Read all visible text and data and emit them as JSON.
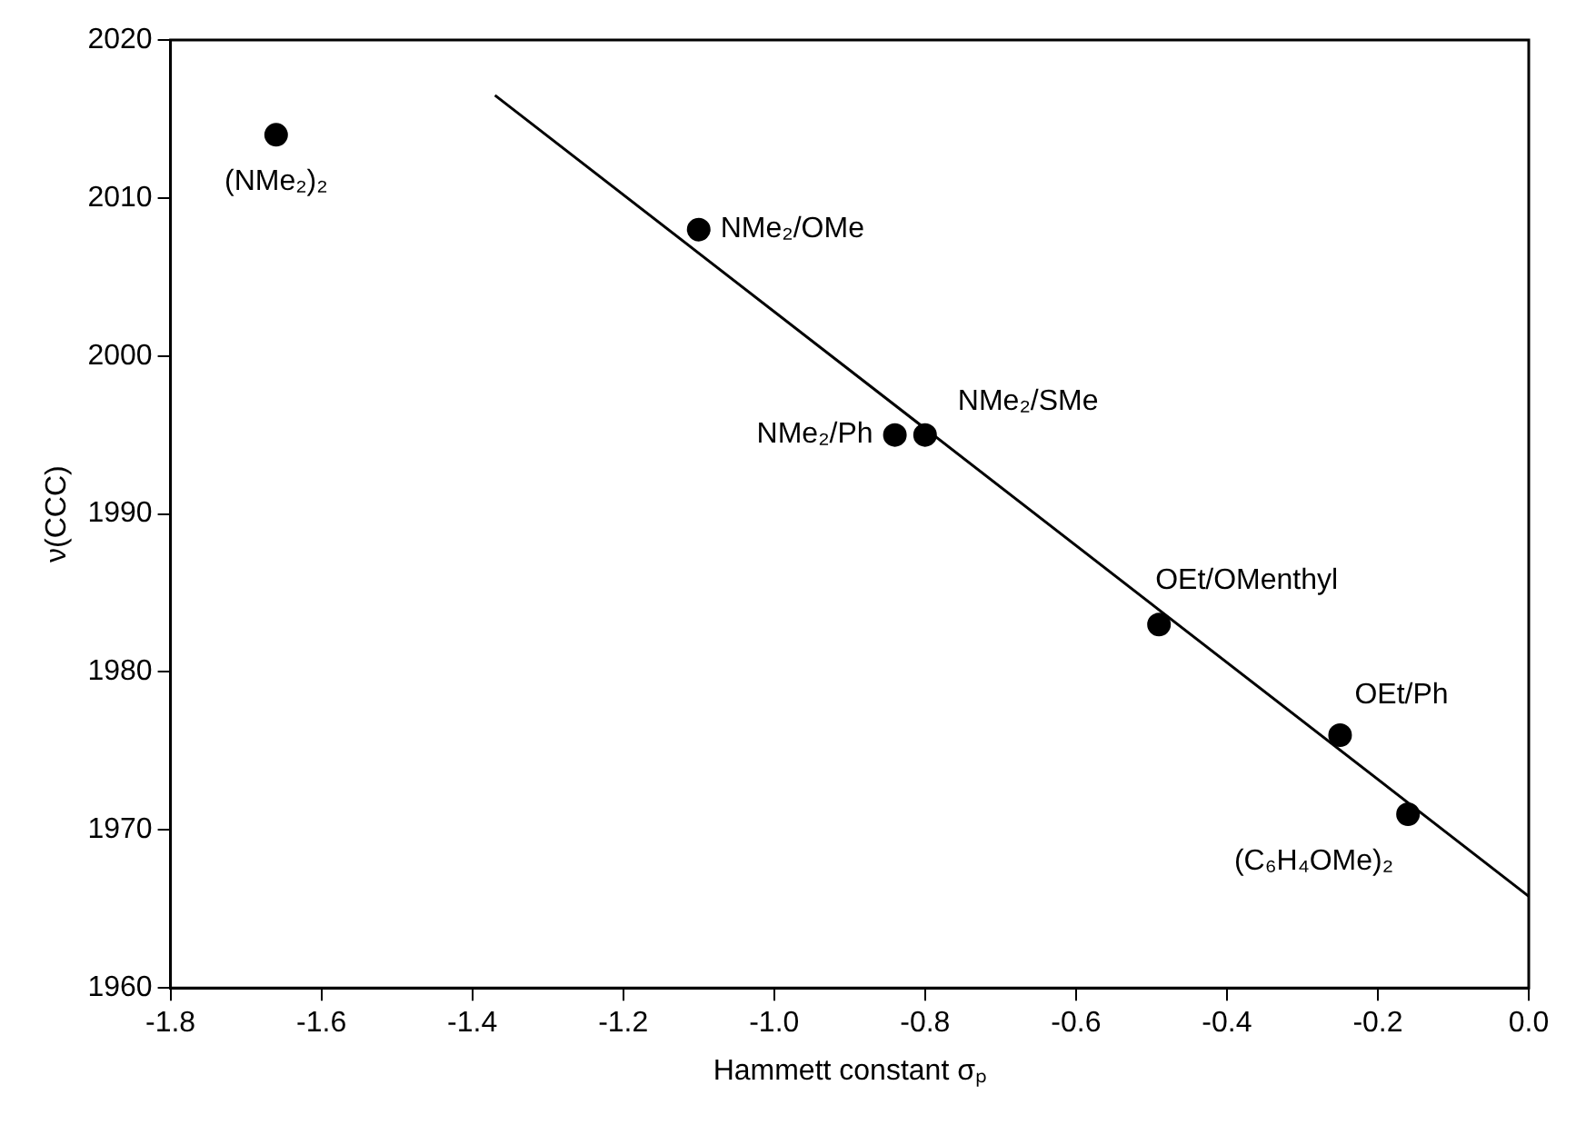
{
  "chart_data": {
    "type": "scatter",
    "xlabel": "Hammett constant σₚ",
    "ylabel": "ν(CCC)",
    "xlim": [
      -1.8,
      0.0
    ],
    "xticks": [
      {
        "value": -1.8,
        "label": "-1.8"
      },
      {
        "value": -1.6,
        "label": "-1.6"
      },
      {
        "value": -1.4,
        "label": "-1.4"
      },
      {
        "value": -1.2,
        "label": "-1.2"
      },
      {
        "value": -1.0,
        "label": "-1.0"
      },
      {
        "value": -0.8,
        "label": "-0.8"
      },
      {
        "value": -0.6,
        "label": "-0.6"
      },
      {
        "value": -0.4,
        "label": "-0.4"
      },
      {
        "value": -0.2,
        "label": "-0.2"
      },
      {
        "value": 0.0,
        "label": "0.0"
      }
    ],
    "ylim": [
      1960,
      2020
    ],
    "yticks": [
      1960,
      1970,
      1980,
      1990,
      2000,
      2010,
      2020
    ],
    "grid": false,
    "legend": false,
    "series": [
      {
        "color": "#000000",
        "marker": "circle",
        "x": [
          -1.66,
          -1.1,
          -0.84,
          -0.8,
          -0.49,
          -0.25,
          -0.16
        ],
        "values": [
          2014,
          2008,
          1995,
          1995,
          1983,
          1976,
          1971
        ]
      },
      {
        "type": "line",
        "color": "#000000",
        "line_style": "solid",
        "marker": "none",
        "x": [
          -1.37,
          0.0
        ],
        "values": [
          2016.5,
          1965.8
        ]
      }
    ],
    "annotations": [
      {
        "text": "(NMe₂)₂",
        "x": -1.66,
        "y": 2014
      },
      {
        "text": "NMe₂/OMe",
        "x": -1.1,
        "y": 2008
      },
      {
        "text": "NMe₂/Ph",
        "x": -0.84,
        "y": 1995
      },
      {
        "text": "NMe₂/SMe",
        "x": -0.8,
        "y": 1995
      },
      {
        "text": "OEt/OMenthyl",
        "x": -0.49,
        "y": 1983
      },
      {
        "text": "OEt/Ph",
        "x": -0.25,
        "y": 1976
      },
      {
        "text": "(C₆H₄OMe)₂",
        "x": -0.16,
        "y": 1971
      }
    ]
  }
}
